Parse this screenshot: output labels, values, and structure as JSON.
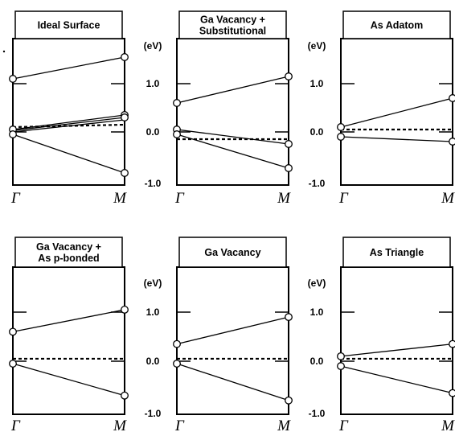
{
  "chart_data": {
    "type": "line",
    "ylabel": "(eV)",
    "yticks": [
      "1.0",
      "0.0",
      "-1.0"
    ],
    "ylim": [
      -1.0,
      1.7
    ],
    "x": [
      "Γ",
      "M"
    ],
    "panels": [
      {
        "title_lines": [
          "Ideal Surface"
        ],
        "bands": [
          {
            "style": "solid",
            "values": [
              1.1,
              1.55
            ]
          },
          {
            "style": "solid",
            "values": [
              0.05,
              0.35
            ]
          },
          {
            "style": "solid",
            "values": [
              0.03,
              0.3
            ]
          },
          {
            "style": "solid",
            "values": [
              0.0,
              0.25
            ]
          },
          {
            "style": "solid",
            "values": [
              -0.05,
              -0.85
            ]
          },
          {
            "style": "dashed",
            "values": [
              0.1,
              0.15
            ]
          }
        ],
        "markers": [
          {
            "x": "Γ",
            "y": 1.1
          },
          {
            "x": "Γ",
            "y": 0.05
          },
          {
            "x": "Γ",
            "y": -0.05
          },
          {
            "x": "M",
            "y": 1.55
          },
          {
            "x": "M",
            "y": 0.35
          },
          {
            "x": "M",
            "y": 0.3
          },
          {
            "x": "M",
            "y": -0.85
          }
        ]
      },
      {
        "title_lines": [
          "Ga Vacancy +",
          "Substitutional"
        ],
        "bands": [
          {
            "style": "solid",
            "values": [
              0.6,
              1.15
            ]
          },
          {
            "style": "solid",
            "values": [
              0.05,
              -0.25
            ]
          },
          {
            "style": "solid",
            "values": [
              -0.05,
              -0.75
            ]
          },
          {
            "style": "dashed",
            "values": [
              -0.15,
              -0.15
            ]
          }
        ],
        "markers": [
          {
            "x": "Γ",
            "y": 0.6
          },
          {
            "x": "Γ",
            "y": 0.05
          },
          {
            "x": "Γ",
            "y": -0.05
          },
          {
            "x": "M",
            "y": 1.15
          },
          {
            "x": "M",
            "y": -0.25
          },
          {
            "x": "M",
            "y": -0.75
          }
        ]
      },
      {
        "title_lines": [
          "As Adatom"
        ],
        "bands": [
          {
            "style": "solid",
            "values": [
              0.1,
              0.7
            ]
          },
          {
            "style": "solid",
            "values": [
              -0.1,
              -0.2
            ]
          },
          {
            "style": "dashed",
            "values": [
              0.05,
              0.05
            ]
          }
        ],
        "markers": [
          {
            "x": "Γ",
            "y": 0.1
          },
          {
            "x": "Γ",
            "y": -0.1
          },
          {
            "x": "M",
            "y": 0.7
          },
          {
            "x": "M",
            "y": -0.2
          }
        ]
      },
      {
        "title_lines": [
          "Ga Vacancy +",
          "As p-bonded"
        ],
        "bands": [
          {
            "style": "solid",
            "values": [
              0.6,
              1.05
            ]
          },
          {
            "style": "solid",
            "values": [
              -0.05,
              -0.7
            ]
          },
          {
            "style": "dashed",
            "values": [
              0.05,
              0.05
            ]
          }
        ],
        "markers": [
          {
            "x": "Γ",
            "y": 0.6
          },
          {
            "x": "Γ",
            "y": -0.05
          },
          {
            "x": "M",
            "y": 1.05
          },
          {
            "x": "M",
            "y": -0.7
          }
        ]
      },
      {
        "title_lines": [
          "Ga Vacancy"
        ],
        "bands": [
          {
            "style": "solid",
            "values": [
              0.35,
              0.9
            ]
          },
          {
            "style": "solid",
            "values": [
              -0.05,
              -0.8
            ]
          },
          {
            "style": "dashed",
            "values": [
              0.05,
              0.05
            ]
          }
        ],
        "markers": [
          {
            "x": "Γ",
            "y": 0.35
          },
          {
            "x": "Γ",
            "y": -0.05
          },
          {
            "x": "M",
            "y": 0.9
          },
          {
            "x": "M",
            "y": -0.8
          }
        ]
      },
      {
        "title_lines": [
          "As Triangle"
        ],
        "bands": [
          {
            "style": "solid",
            "values": [
              0.1,
              0.35
            ]
          },
          {
            "style": "solid",
            "values": [
              -0.1,
              -0.65
            ]
          },
          {
            "style": "dashed",
            "values": [
              0.05,
              0.05
            ]
          }
        ],
        "markers": [
          {
            "x": "Γ",
            "y": 0.1
          },
          {
            "x": "Γ",
            "y": -0.1
          },
          {
            "x": "M",
            "y": 0.35
          },
          {
            "x": "M",
            "y": -0.65
          }
        ]
      }
    ]
  }
}
